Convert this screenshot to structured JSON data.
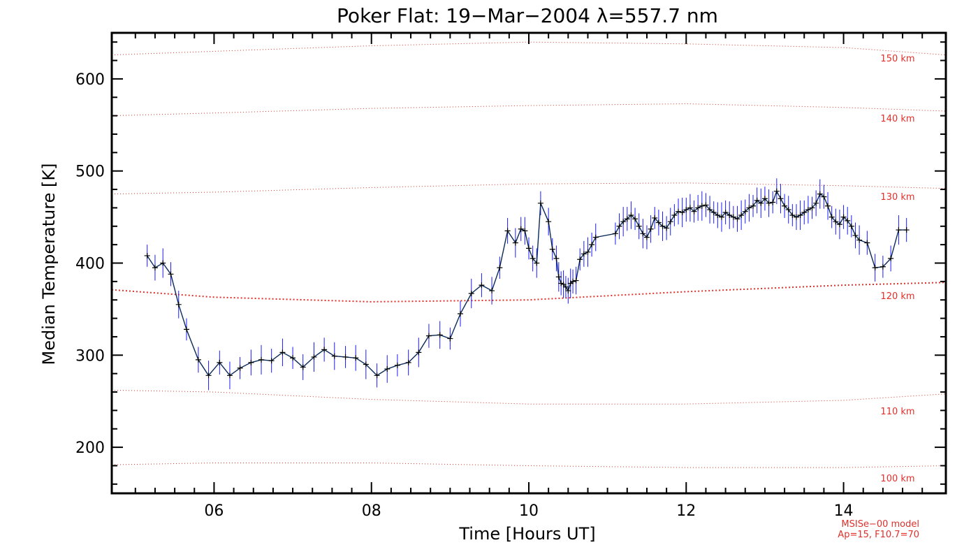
{
  "chart_data": {
    "type": "line",
    "title": "Poker Flat: 19−Mar−2004 λ=557.7 nm",
    "xlabel": "Time [Hours UT]",
    "ylabel": "Median Temperature [K]",
    "xlim": [
      4.7,
      15.3
    ],
    "ylim": [
      150,
      650
    ],
    "x_ticks": [
      6,
      8,
      10,
      12,
      14
    ],
    "x_tick_labels": [
      "06",
      "08",
      "10",
      "12",
      "14"
    ],
    "y_ticks": [
      200,
      300,
      400,
      500,
      600
    ],
    "y_tick_labels": [
      "200",
      "300",
      "400",
      "500",
      "600"
    ],
    "grid": false,
    "series": [
      {
        "color": "#0a2a5a",
        "errorbar_color": "#1a1aff",
        "marker": "+",
        "x": [
          5.15,
          5.25,
          5.35,
          5.45,
          5.55,
          5.65,
          5.8,
          5.93,
          6.07,
          6.2,
          6.33,
          6.47,
          6.6,
          6.73,
          6.87,
          7.0,
          7.13,
          7.27,
          7.4,
          7.53,
          7.67,
          7.8,
          7.93,
          8.07,
          8.2,
          8.33,
          8.47,
          8.6,
          8.73,
          8.87,
          9.0,
          9.13,
          9.27,
          9.4,
          9.53,
          9.63,
          9.73,
          9.83,
          9.9,
          9.95,
          10.0,
          10.05,
          10.1,
          10.15,
          10.25,
          10.3,
          10.35,
          10.38,
          10.41,
          10.44,
          10.47,
          10.5,
          10.53,
          10.56,
          10.6,
          10.65,
          10.7,
          10.75,
          10.8,
          10.85,
          11.1,
          11.15,
          11.2,
          11.25,
          11.3,
          11.35,
          11.4,
          11.45,
          11.5,
          11.55,
          11.6,
          11.65,
          11.7,
          11.75,
          11.8,
          11.85,
          11.9,
          11.95,
          12.0,
          12.05,
          12.1,
          12.15,
          12.2,
          12.25,
          12.3,
          12.35,
          12.4,
          12.45,
          12.5,
          12.55,
          12.6,
          12.65,
          12.7,
          12.75,
          12.8,
          12.85,
          12.9,
          12.95,
          13.0,
          13.05,
          13.1,
          13.15,
          13.2,
          13.25,
          13.3,
          13.35,
          13.4,
          13.45,
          13.5,
          13.55,
          13.6,
          13.65,
          13.7,
          13.75,
          13.8,
          13.85,
          13.9,
          13.95,
          14.0,
          14.05,
          14.1,
          14.15,
          14.2,
          14.3,
          14.4,
          14.5,
          14.6,
          14.7,
          14.8
        ],
        "y": [
          408,
          395,
          400,
          388,
          355,
          328,
          295,
          278,
          292,
          278,
          286,
          292,
          295,
          294,
          303,
          297,
          287,
          298,
          306,
          299,
          298,
          297,
          290,
          278,
          285,
          289,
          292,
          303,
          321,
          322,
          318,
          345,
          367,
          376,
          370,
          395,
          435,
          422,
          437,
          435,
          416,
          405,
          400,
          465,
          445,
          415,
          405,
          385,
          378,
          377,
          374,
          370,
          378,
          380,
          381,
          404,
          410,
          412,
          420,
          428,
          432,
          440,
          445,
          448,
          452,
          448,
          440,
          432,
          428,
          437,
          449,
          444,
          440,
          438,
          445,
          452,
          456,
          455,
          458,
          460,
          456,
          460,
          462,
          463,
          458,
          455,
          452,
          450,
          455,
          452,
          450,
          448,
          452,
          456,
          460,
          462,
          468,
          465,
          470,
          465,
          466,
          478,
          470,
          462,
          458,
          452,
          450,
          452,
          455,
          458,
          460,
          465,
          475,
          472,
          462,
          450,
          445,
          442,
          450,
          446,
          440,
          430,
          425,
          422,
          395,
          396,
          405,
          436,
          436
        ]
      }
    ],
    "reference_lines": [
      {
        "label": "100 km",
        "color": "#e0302a",
        "x": [
          4.7,
          6,
          8,
          10,
          12,
          14,
          15.3
        ],
        "y": [
          181,
          183,
          183,
          180,
          178,
          178,
          180
        ]
      },
      {
        "label": "110 km",
        "color": "#e0302a",
        "x": [
          4.7,
          6,
          8,
          10,
          12,
          14,
          15.3
        ],
        "y": [
          262,
          260,
          252,
          247,
          247,
          251,
          258
        ]
      },
      {
        "label": "120 km",
        "color": "#e0302a",
        "x": [
          4.7,
          6,
          8,
          10,
          12,
          14,
          15.3
        ],
        "y": [
          371,
          363,
          358,
          360,
          369,
          376,
          379
        ]
      },
      {
        "label": "130 km",
        "color": "#e0302a",
        "x": [
          4.7,
          6,
          8,
          10,
          12,
          14,
          15.3
        ],
        "y": [
          475,
          477,
          482,
          486,
          487,
          484,
          481
        ]
      },
      {
        "label": "140 km",
        "color": "#e0302a",
        "x": [
          4.7,
          6,
          8,
          10,
          12,
          14,
          15.3
        ],
        "y": [
          560,
          563,
          568,
          571,
          573,
          569,
          565
        ]
      },
      {
        "label": "150 km",
        "color": "#e0302a",
        "x": [
          4.7,
          6,
          8,
          10,
          12,
          14,
          15.3
        ],
        "y": [
          626,
          630,
          636,
          640,
          638,
          634,
          626
        ]
      }
    ],
    "annotations": [
      "MSISe−00 model",
      "Ap=15, F10.7=70"
    ]
  }
}
